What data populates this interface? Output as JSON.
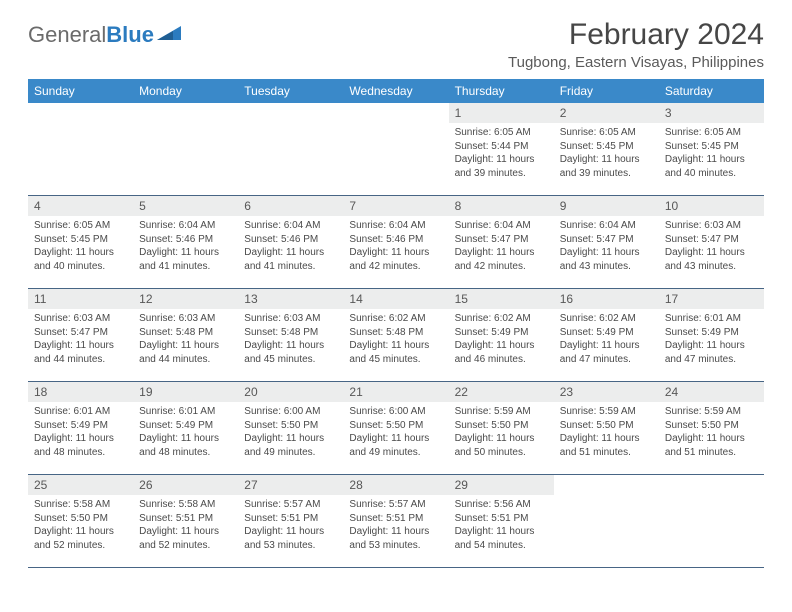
{
  "logo": {
    "text1": "General",
    "text2": "Blue"
  },
  "title": "February 2024",
  "location": "Tugbong, Eastern Visayas, Philippines",
  "colors": {
    "header_bg": "#3a89c9",
    "header_text": "#ffffff",
    "daynum_bg": "#eceded",
    "border": "#476585",
    "logo_gray": "#6b6b6b",
    "logo_blue": "#2b7bbf"
  },
  "weekdays": [
    "Sunday",
    "Monday",
    "Tuesday",
    "Wednesday",
    "Thursday",
    "Friday",
    "Saturday"
  ],
  "weeks": [
    [
      null,
      null,
      null,
      null,
      {
        "n": "1",
        "sr": "6:05 AM",
        "ss": "5:44 PM",
        "dl": "11 hours and 39 minutes."
      },
      {
        "n": "2",
        "sr": "6:05 AM",
        "ss": "5:45 PM",
        "dl": "11 hours and 39 minutes."
      },
      {
        "n": "3",
        "sr": "6:05 AM",
        "ss": "5:45 PM",
        "dl": "11 hours and 40 minutes."
      }
    ],
    [
      {
        "n": "4",
        "sr": "6:05 AM",
        "ss": "5:45 PM",
        "dl": "11 hours and 40 minutes."
      },
      {
        "n": "5",
        "sr": "6:04 AM",
        "ss": "5:46 PM",
        "dl": "11 hours and 41 minutes."
      },
      {
        "n": "6",
        "sr": "6:04 AM",
        "ss": "5:46 PM",
        "dl": "11 hours and 41 minutes."
      },
      {
        "n": "7",
        "sr": "6:04 AM",
        "ss": "5:46 PM",
        "dl": "11 hours and 42 minutes."
      },
      {
        "n": "8",
        "sr": "6:04 AM",
        "ss": "5:47 PM",
        "dl": "11 hours and 42 minutes."
      },
      {
        "n": "9",
        "sr": "6:04 AM",
        "ss": "5:47 PM",
        "dl": "11 hours and 43 minutes."
      },
      {
        "n": "10",
        "sr": "6:03 AM",
        "ss": "5:47 PM",
        "dl": "11 hours and 43 minutes."
      }
    ],
    [
      {
        "n": "11",
        "sr": "6:03 AM",
        "ss": "5:47 PM",
        "dl": "11 hours and 44 minutes."
      },
      {
        "n": "12",
        "sr": "6:03 AM",
        "ss": "5:48 PM",
        "dl": "11 hours and 44 minutes."
      },
      {
        "n": "13",
        "sr": "6:03 AM",
        "ss": "5:48 PM",
        "dl": "11 hours and 45 minutes."
      },
      {
        "n": "14",
        "sr": "6:02 AM",
        "ss": "5:48 PM",
        "dl": "11 hours and 45 minutes."
      },
      {
        "n": "15",
        "sr": "6:02 AM",
        "ss": "5:49 PM",
        "dl": "11 hours and 46 minutes."
      },
      {
        "n": "16",
        "sr": "6:02 AM",
        "ss": "5:49 PM",
        "dl": "11 hours and 47 minutes."
      },
      {
        "n": "17",
        "sr": "6:01 AM",
        "ss": "5:49 PM",
        "dl": "11 hours and 47 minutes."
      }
    ],
    [
      {
        "n": "18",
        "sr": "6:01 AM",
        "ss": "5:49 PM",
        "dl": "11 hours and 48 minutes."
      },
      {
        "n": "19",
        "sr": "6:01 AM",
        "ss": "5:49 PM",
        "dl": "11 hours and 48 minutes."
      },
      {
        "n": "20",
        "sr": "6:00 AM",
        "ss": "5:50 PM",
        "dl": "11 hours and 49 minutes."
      },
      {
        "n": "21",
        "sr": "6:00 AM",
        "ss": "5:50 PM",
        "dl": "11 hours and 49 minutes."
      },
      {
        "n": "22",
        "sr": "5:59 AM",
        "ss": "5:50 PM",
        "dl": "11 hours and 50 minutes."
      },
      {
        "n": "23",
        "sr": "5:59 AM",
        "ss": "5:50 PM",
        "dl": "11 hours and 51 minutes."
      },
      {
        "n": "24",
        "sr": "5:59 AM",
        "ss": "5:50 PM",
        "dl": "11 hours and 51 minutes."
      }
    ],
    [
      {
        "n": "25",
        "sr": "5:58 AM",
        "ss": "5:50 PM",
        "dl": "11 hours and 52 minutes."
      },
      {
        "n": "26",
        "sr": "5:58 AM",
        "ss": "5:51 PM",
        "dl": "11 hours and 52 minutes."
      },
      {
        "n": "27",
        "sr": "5:57 AM",
        "ss": "5:51 PM",
        "dl": "11 hours and 53 minutes."
      },
      {
        "n": "28",
        "sr": "5:57 AM",
        "ss": "5:51 PM",
        "dl": "11 hours and 53 minutes."
      },
      {
        "n": "29",
        "sr": "5:56 AM",
        "ss": "5:51 PM",
        "dl": "11 hours and 54 minutes."
      },
      null,
      null
    ]
  ],
  "labels": {
    "sunrise": "Sunrise: ",
    "sunset": "Sunset: ",
    "daylight": "Daylight: "
  }
}
